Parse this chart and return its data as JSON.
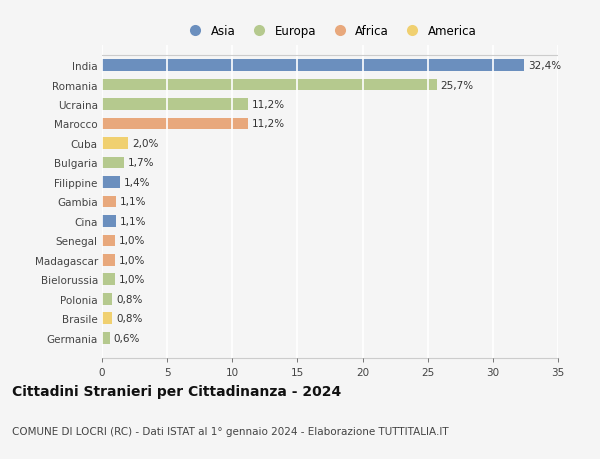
{
  "countries": [
    "India",
    "Romania",
    "Ucraina",
    "Marocco",
    "Cuba",
    "Bulgaria",
    "Filippine",
    "Gambia",
    "Cina",
    "Senegal",
    "Madagascar",
    "Bielorussia",
    "Polonia",
    "Brasile",
    "Germania"
  ],
  "values": [
    32.4,
    25.7,
    11.2,
    11.2,
    2.0,
    1.7,
    1.4,
    1.1,
    1.1,
    1.0,
    1.0,
    1.0,
    0.8,
    0.8,
    0.6
  ],
  "labels": [
    "32,4%",
    "25,7%",
    "11,2%",
    "11,2%",
    "2,0%",
    "1,7%",
    "1,4%",
    "1,1%",
    "1,1%",
    "1,0%",
    "1,0%",
    "1,0%",
    "0,8%",
    "0,8%",
    "0,6%"
  ],
  "continents": [
    "Asia",
    "Europa",
    "Europa",
    "Africa",
    "America",
    "Europa",
    "Asia",
    "Africa",
    "Asia",
    "Africa",
    "Africa",
    "Europa",
    "Europa",
    "America",
    "Europa"
  ],
  "colors": {
    "Asia": "#6b8fbe",
    "Europa": "#b5c98e",
    "Africa": "#e8a87c",
    "America": "#f0d070"
  },
  "legend_order": [
    "Asia",
    "Europa",
    "Africa",
    "America"
  ],
  "background_color": "#f5f5f5",
  "plot_bg_color": "#f5f5f5",
  "title": "Cittadini Stranieri per Cittadinanza - 2024",
  "subtitle": "COMUNE DI LOCRI (RC) - Dati ISTAT al 1° gennaio 2024 - Elaborazione TUTTITALIA.IT",
  "xlim": [
    0,
    35
  ],
  "xticks": [
    0,
    5,
    10,
    15,
    20,
    25,
    30,
    35
  ],
  "grid_color": "#ffffff",
  "bar_height": 0.6,
  "label_fontsize": 7.5,
  "ytick_fontsize": 7.5,
  "xtick_fontsize": 7.5,
  "title_fontsize": 10,
  "subtitle_fontsize": 7.5,
  "legend_fontsize": 8.5
}
